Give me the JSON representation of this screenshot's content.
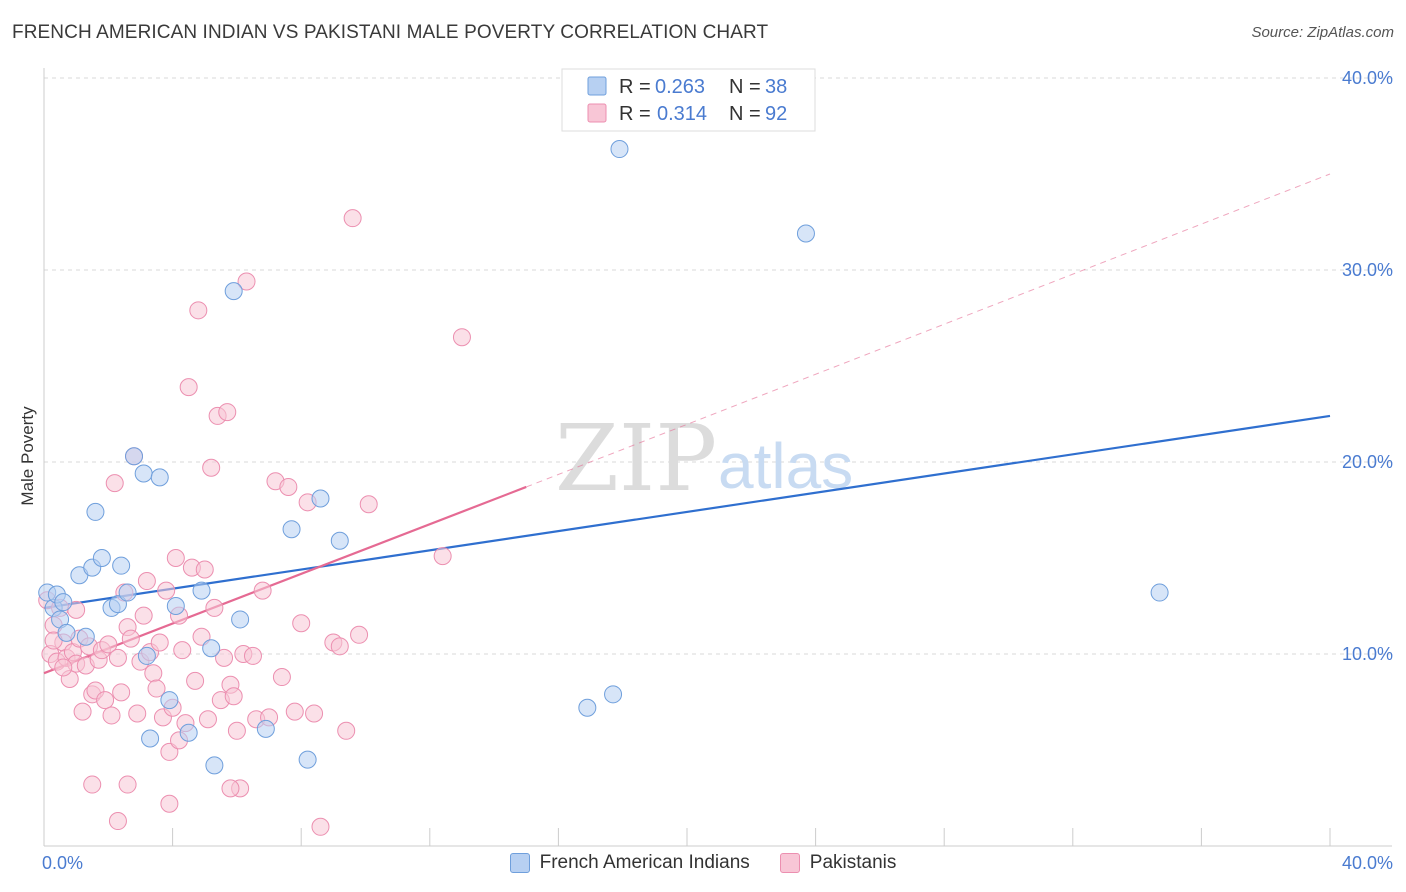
{
  "header": {
    "title": "FRENCH AMERICAN INDIAN VS PAKISTANI MALE POVERTY CORRELATION CHART",
    "source": "Source: ZipAtlas.com"
  },
  "watermark": {
    "zip": "ZIP",
    "atlas": "atlas"
  },
  "colors": {
    "blue_fill": "#b7d0f2",
    "blue_stroke": "#6f9fdc",
    "blue_line": "#2f6fcf",
    "pink_fill": "#f8c6d6",
    "pink_stroke": "#ec8fb0",
    "pink_line": "#e56a93",
    "tick": "#4a7bd0",
    "grid": "#d9d9d9"
  },
  "chart_data": {
    "type": "scatter",
    "title": "FRENCH AMERICAN INDIAN VS PAKISTANI MALE POVERTY CORRELATION CHART",
    "xlabel": "",
    "ylabel": "Male Poverty",
    "xlim": [
      0,
      40
    ],
    "ylim": [
      0,
      40
    ],
    "x_tick_labels": [
      "0.0%",
      "40.0%"
    ],
    "y_ticks": [
      10,
      20,
      30,
      40
    ],
    "y_tick_labels": [
      "10.0%",
      "20.0%",
      "30.0%",
      "40.0%"
    ],
    "legend_stats": [
      {
        "r_label": "R =",
        "r": "0.263",
        "n_label": "N =",
        "n": "38"
      },
      {
        "r_label": "R =",
        "r": "0.314",
        "n_label": "N =",
        "n": "92"
      }
    ],
    "series": [
      {
        "name": "French American Indians",
        "color": "blue",
        "trend": {
          "x": [
            0,
            40
          ],
          "y": [
            12.4,
            22.4
          ],
          "dashed_extension": false
        },
        "points": [
          [
            0.1,
            13.2
          ],
          [
            0.3,
            12.4
          ],
          [
            0.4,
            13.1
          ],
          [
            0.5,
            11.8
          ],
          [
            0.6,
            12.7
          ],
          [
            0.7,
            11.1
          ],
          [
            1.1,
            14.1
          ],
          [
            1.3,
            10.9
          ],
          [
            1.5,
            14.5
          ],
          [
            1.6,
            17.4
          ],
          [
            1.8,
            15.0
          ],
          [
            2.1,
            12.4
          ],
          [
            2.3,
            12.6
          ],
          [
            2.4,
            14.6
          ],
          [
            2.6,
            13.2
          ],
          [
            2.8,
            20.3
          ],
          [
            3.1,
            19.4
          ],
          [
            3.6,
            19.2
          ],
          [
            3.2,
            9.9
          ],
          [
            3.3,
            5.6
          ],
          [
            3.9,
            7.6
          ],
          [
            4.1,
            12.5
          ],
          [
            4.5,
            5.9
          ],
          [
            4.9,
            13.3
          ],
          [
            5.2,
            10.3
          ],
          [
            5.3,
            4.2
          ],
          [
            5.9,
            28.9
          ],
          [
            6.1,
            11.8
          ],
          [
            6.9,
            6.1
          ],
          [
            7.7,
            16.5
          ],
          [
            8.2,
            4.5
          ],
          [
            8.6,
            18.1
          ],
          [
            9.2,
            15.9
          ],
          [
            16.9,
            7.2
          ],
          [
            17.7,
            7.9
          ],
          [
            17.9,
            36.3
          ],
          [
            23.7,
            31.9
          ],
          [
            34.7,
            13.2
          ]
        ]
      },
      {
        "name": "Pakistanis",
        "color": "pink",
        "trend": {
          "x": [
            0,
            15
          ],
          "y": [
            9.0,
            18.7
          ],
          "dashed_extension": true,
          "dashed_to": [
            40,
            35.0
          ]
        },
        "points": [
          [
            0.1,
            12.8
          ],
          [
            0.2,
            10.0
          ],
          [
            0.3,
            11.5
          ],
          [
            0.4,
            9.6
          ],
          [
            0.5,
            12.4
          ],
          [
            0.6,
            10.6
          ],
          [
            0.7,
            9.8
          ],
          [
            0.8,
            8.7
          ],
          [
            0.9,
            10.1
          ],
          [
            1.0,
            9.5
          ],
          [
            1.1,
            10.8
          ],
          [
            1.2,
            7.0
          ],
          [
            1.3,
            9.4
          ],
          [
            1.4,
            10.4
          ],
          [
            1.5,
            7.9
          ],
          [
            1.6,
            8.1
          ],
          [
            1.7,
            9.7
          ],
          [
            1.8,
            10.2
          ],
          [
            1.9,
            7.6
          ],
          [
            2.0,
            10.5
          ],
          [
            2.1,
            6.8
          ],
          [
            2.2,
            18.9
          ],
          [
            2.3,
            9.8
          ],
          [
            2.4,
            8.0
          ],
          [
            2.5,
            13.2
          ],
          [
            2.6,
            11.4
          ],
          [
            2.7,
            10.8
          ],
          [
            2.8,
            20.3
          ],
          [
            2.9,
            6.9
          ],
          [
            3.0,
            9.6
          ],
          [
            3.1,
            12.0
          ],
          [
            3.2,
            13.8
          ],
          [
            3.3,
            10.1
          ],
          [
            3.4,
            9.0
          ],
          [
            3.5,
            8.2
          ],
          [
            3.6,
            10.6
          ],
          [
            3.7,
            6.7
          ],
          [
            3.8,
            13.3
          ],
          [
            3.9,
            4.9
          ],
          [
            4.0,
            7.2
          ],
          [
            4.1,
            15.0
          ],
          [
            4.2,
            12.0
          ],
          [
            4.3,
            10.2
          ],
          [
            4.4,
            6.4
          ],
          [
            4.5,
            23.9
          ],
          [
            4.6,
            14.5
          ],
          [
            4.7,
            8.6
          ],
          [
            4.8,
            27.9
          ],
          [
            4.9,
            10.9
          ],
          [
            5.0,
            14.4
          ],
          [
            5.1,
            6.6
          ],
          [
            5.2,
            19.7
          ],
          [
            5.3,
            12.4
          ],
          [
            5.4,
            22.4
          ],
          [
            5.5,
            7.6
          ],
          [
            5.6,
            9.8
          ],
          [
            5.7,
            22.6
          ],
          [
            5.8,
            8.4
          ],
          [
            5.9,
            7.8
          ],
          [
            6.0,
            6.0
          ],
          [
            6.1,
            3.0
          ],
          [
            6.2,
            10.0
          ],
          [
            6.3,
            29.4
          ],
          [
            6.5,
            9.9
          ],
          [
            6.6,
            6.6
          ],
          [
            6.8,
            13.3
          ],
          [
            7.0,
            6.7
          ],
          [
            7.2,
            19.0
          ],
          [
            7.4,
            8.8
          ],
          [
            7.6,
            18.7
          ],
          [
            7.8,
            7.0
          ],
          [
            8.0,
            11.6
          ],
          [
            8.2,
            17.9
          ],
          [
            8.4,
            6.9
          ],
          [
            8.6,
            1.0
          ],
          [
            9.0,
            10.6
          ],
          [
            9.2,
            10.4
          ],
          [
            9.4,
            6.0
          ],
          [
            9.6,
            32.7
          ],
          [
            9.8,
            11.0
          ],
          [
            10.1,
            17.8
          ],
          [
            13.0,
            26.5
          ],
          [
            12.4,
            15.1
          ],
          [
            1.5,
            3.2
          ],
          [
            2.3,
            1.3
          ],
          [
            2.6,
            3.2
          ],
          [
            3.9,
            2.2
          ],
          [
            4.2,
            5.5
          ],
          [
            5.8,
            3.0
          ],
          [
            0.6,
            9.3
          ],
          [
            1.0,
            12.3
          ],
          [
            0.3,
            10.7
          ]
        ]
      }
    ]
  },
  "bottom_legend": [
    {
      "label": "French American Indians",
      "color": "blue"
    },
    {
      "label": "Pakistanis",
      "color": "pink"
    }
  ]
}
